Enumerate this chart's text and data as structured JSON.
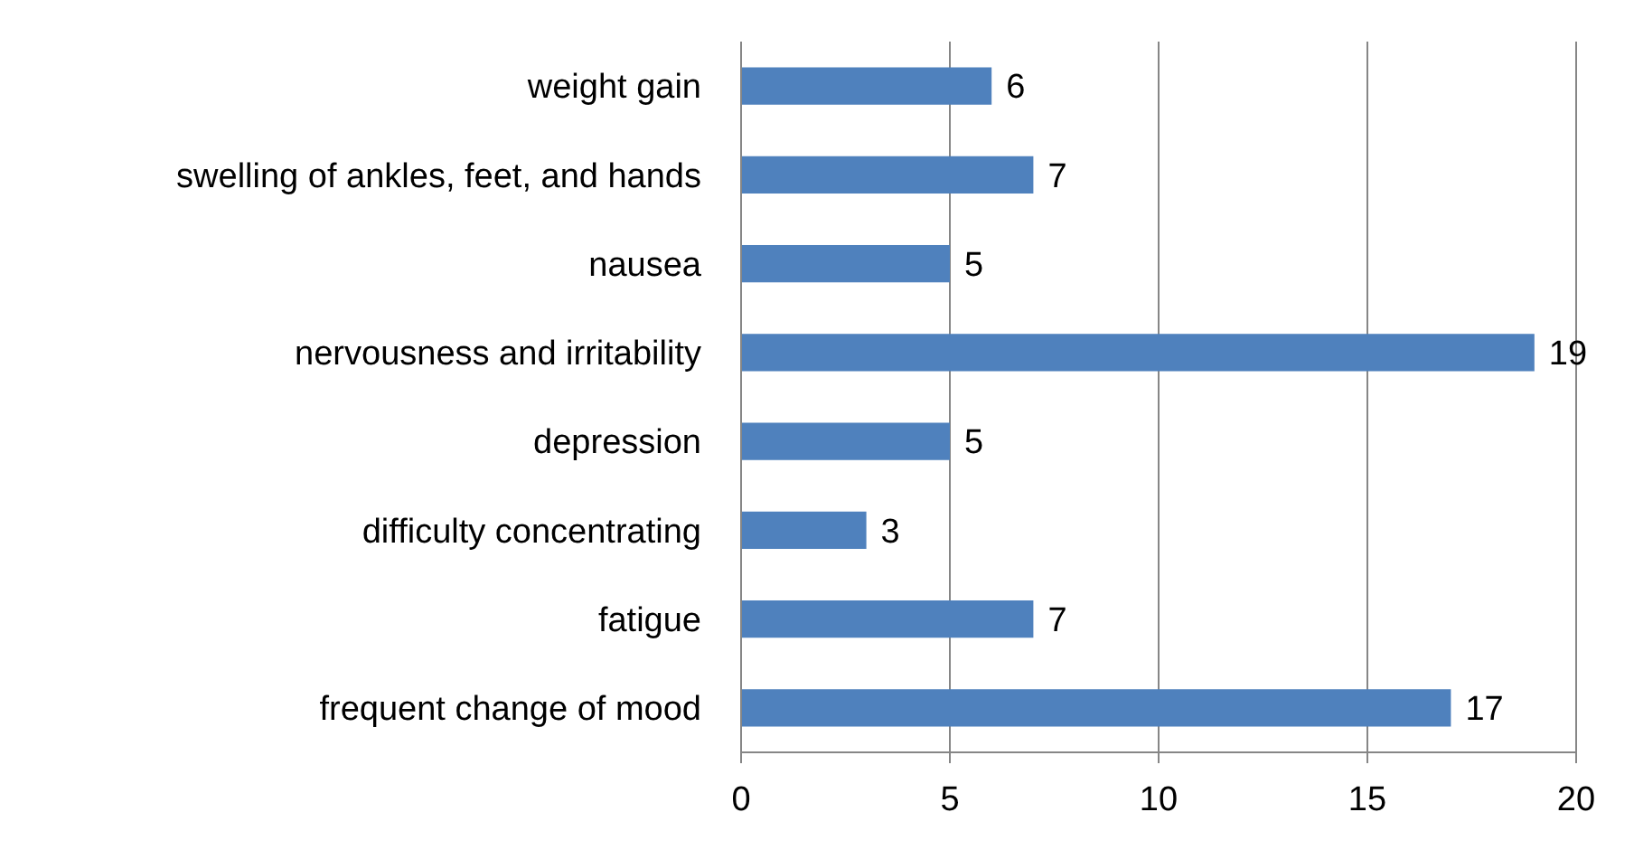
{
  "chart_data": {
    "type": "bar",
    "orientation": "horizontal",
    "categories": [
      "weight gain",
      "swelling of ankles, feet, and hands",
      "nausea",
      "nervousness and irritability",
      "depression",
      "difficulty concentrating",
      "fatigue",
      "frequent change of mood"
    ],
    "values": [
      6,
      7,
      5,
      19,
      5,
      3,
      7,
      17
    ],
    "color": "#4f81bd",
    "xlim": [
      0,
      20
    ],
    "xticks": [
      0,
      5,
      10,
      15,
      20
    ],
    "grid": "x",
    "data_labels": true
  }
}
